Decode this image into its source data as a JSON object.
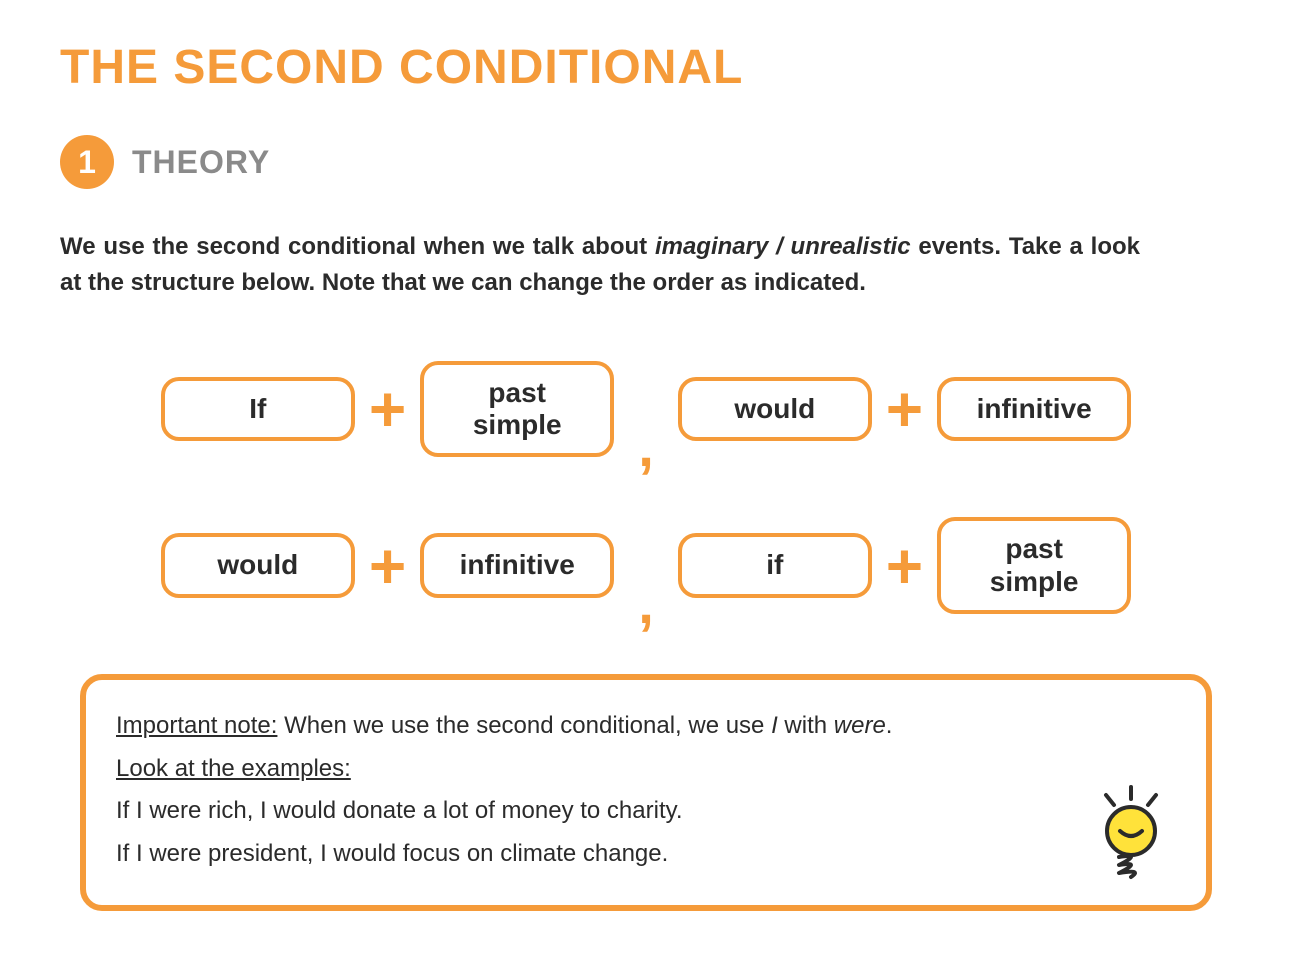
{
  "colors": {
    "accent": "#f59b3a",
    "title": "#f59b3a",
    "sectionLabel": "#8a8a8a",
    "text": "#2b2b2b",
    "boxBorder": "#f59b3a",
    "plus": "#f59b3a",
    "comma": "#f59b3a",
    "noteBorder": "#f59b3a",
    "bulbYellow": "#ffe23a",
    "bulbStroke": "#2b2b2b"
  },
  "title": "THE SECOND CONDITIONAL",
  "section": {
    "number": "1",
    "label": "THEORY"
  },
  "intro": {
    "pre": "We use the second conditional when we talk about ",
    "italic": "imaginary / unrealistic",
    "post": " events. Take a look at the structure below. Note that we can change the order as indicated."
  },
  "formulas": {
    "row1": {
      "b1": "If",
      "b2": "past\nsimple",
      "b3": "would",
      "b4": "infinitive"
    },
    "row2": {
      "b1": "would",
      "b2": "infinitive",
      "b3": "if",
      "b4": "past\nsimple"
    }
  },
  "note": {
    "importantLabel": "Important note:",
    "importantPre": " When we use the second conditional, we use ",
    "importantI": "I",
    "importantMid": " with ",
    "importantWere": "were",
    "importantEnd": ".",
    "examplesLabel": "Look at the examples:",
    "ex1": "If I were rich, I would donate a lot of money to charity.",
    "ex2": "If I were president, I would focus on climate change."
  }
}
